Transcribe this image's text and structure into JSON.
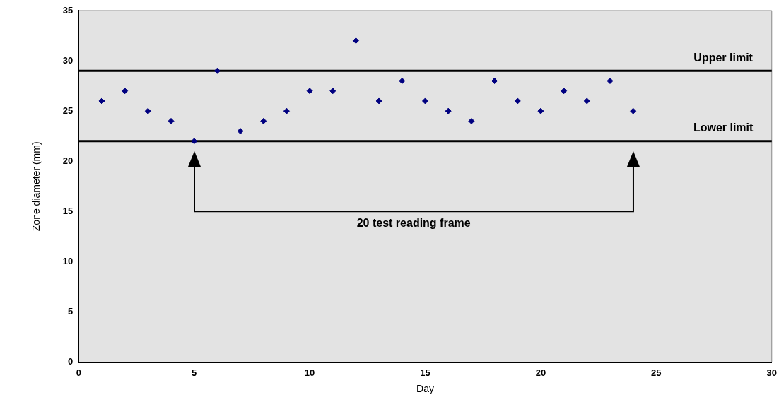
{
  "chart_data": {
    "type": "scatter",
    "xlabel": "Day",
    "ylabel": "Zone diameter (mm)",
    "x": [
      1,
      2,
      3,
      4,
      5,
      6,
      7,
      8,
      9,
      10,
      11,
      12,
      13,
      14,
      15,
      16,
      17,
      18,
      19,
      20,
      21,
      22,
      23,
      24
    ],
    "series": [
      {
        "color": "#000080",
        "values": [
          26,
          27,
          25,
          24,
          22,
          29,
          23,
          24,
          25,
          27,
          27,
          32,
          26,
          28,
          26,
          25,
          24,
          28,
          26,
          25,
          27,
          26,
          28,
          25
        ]
      }
    ],
    "marker": "diamond",
    "xlim": [
      0,
      30
    ],
    "xticks": [
      0,
      5,
      10,
      15,
      20,
      25,
      30
    ],
    "ylim": [
      0,
      35
    ],
    "yticks": [
      0,
      5,
      10,
      15,
      20,
      25,
      30,
      35
    ],
    "grid": false,
    "legend": false,
    "ref_lines": [
      {
        "axis": "y",
        "value": 29,
        "label": "Upper limit",
        "color": "#000000"
      },
      {
        "axis": "y",
        "value": 22,
        "label": "Lower limit",
        "color": "#000000"
      }
    ],
    "annotations": [
      "20 test reading frame"
    ]
  }
}
